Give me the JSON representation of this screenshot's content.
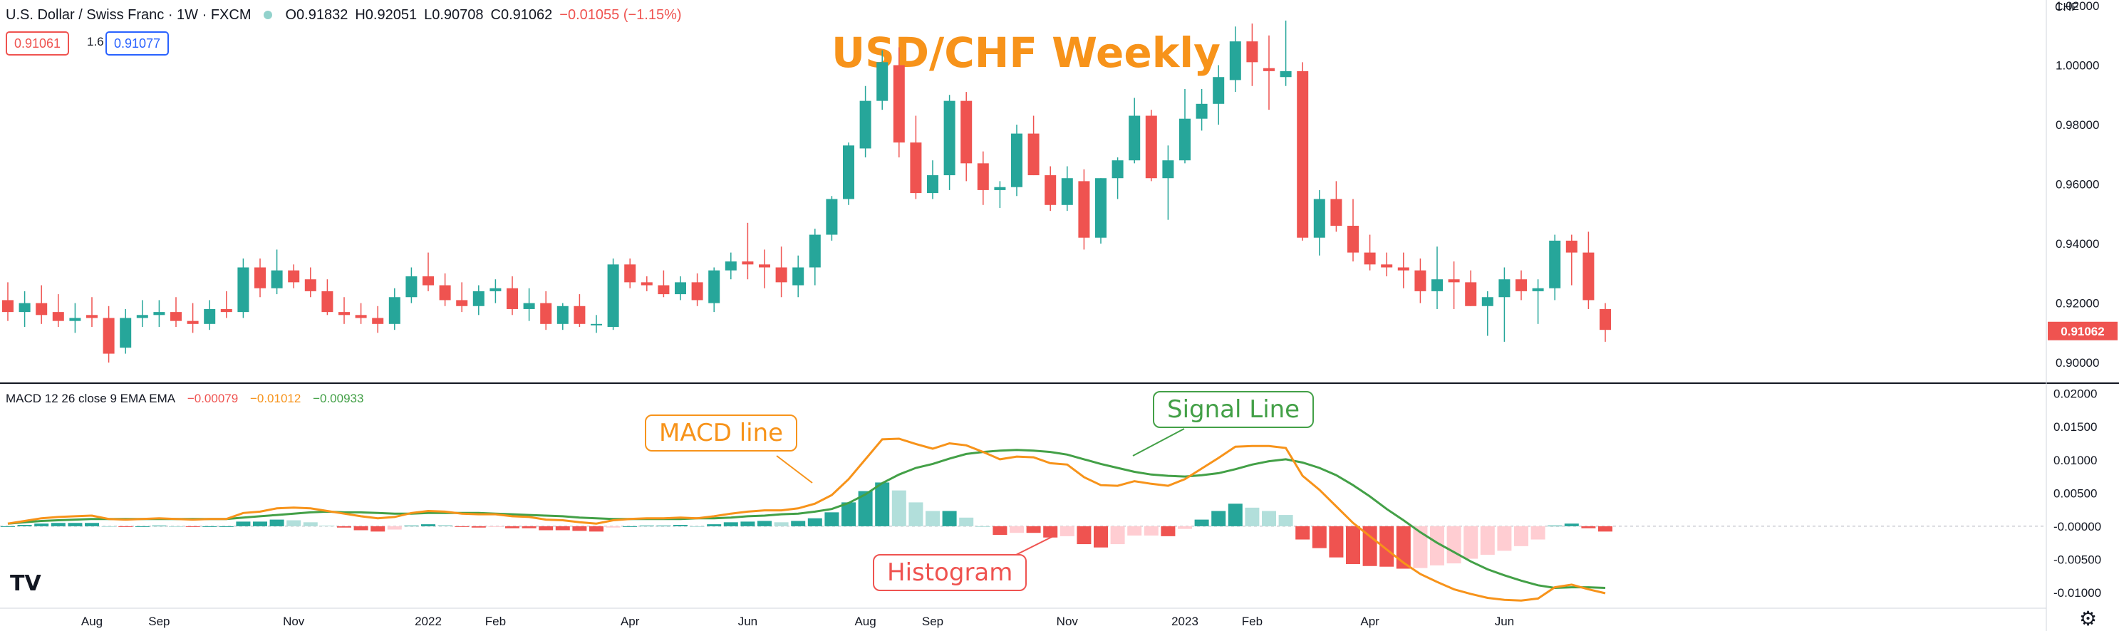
{
  "header": {
    "symbol": "U.S. Dollar / Swiss Franc · 1W · FXCM",
    "open": "O0.91832",
    "high": "H0.92051",
    "low": "L0.90708",
    "close": "C0.91062",
    "change": "−0.01055 (−1.15%)",
    "bid": "0.91061",
    "spread": "1.6",
    "ask": "0.91077",
    "currency": "CHF"
  },
  "chart_title": "USD/CHF Weekly",
  "macd_header": {
    "name": "MACD 12 26 close 9 EMA EMA",
    "hist_value": "−0.00079",
    "macd_value": "−0.01012",
    "signal_value": "−0.00933"
  },
  "callouts": {
    "macd_line": "MACD line",
    "signal_line": "Signal Line",
    "histogram": "Histogram"
  },
  "last_price_label": "0.91062",
  "colors": {
    "up": "#26a69a",
    "down": "#ef5350",
    "title": "#f7931a",
    "macd": "#f7931a",
    "signal": "#43a047"
  },
  "chart_data": [
    {
      "type": "candlestick",
      "title": "USD/CHF Weekly",
      "ylim": [
        0.895,
        1.02
      ],
      "y_ticks": [
        "0.90000",
        "0.92000",
        "0.94000",
        "0.96000",
        "0.98000",
        "1.00000",
        "1.02000"
      ],
      "x_tick_labels": [
        {
          "label": "Aug",
          "week": 5
        },
        {
          "label": "Sep",
          "week": 9
        },
        {
          "label": "Nov",
          "week": 17
        },
        {
          "label": "2022",
          "week": 25
        },
        {
          "label": "Feb",
          "week": 29
        },
        {
          "label": "Apr",
          "week": 37
        },
        {
          "label": "Jun",
          "week": 44
        },
        {
          "label": "Aug",
          "week": 51
        },
        {
          "label": "Sep",
          "week": 55
        },
        {
          "label": "Nov",
          "week": 63
        },
        {
          "label": "2023",
          "week": 70
        },
        {
          "label": "Feb",
          "week": 74
        },
        {
          "label": "Apr",
          "week": 81
        },
        {
          "label": "Jun",
          "week": 89
        }
      ],
      "ohlc": [
        [
          0.921,
          0.927,
          0.914,
          0.917
        ],
        [
          0.917,
          0.924,
          0.912,
          0.92
        ],
        [
          0.92,
          0.926,
          0.913,
          0.916
        ],
        [
          0.917,
          0.923,
          0.912,
          0.914
        ],
        [
          0.914,
          0.92,
          0.91,
          0.915
        ],
        [
          0.916,
          0.922,
          0.912,
          0.915
        ],
        [
          0.915,
          0.919,
          0.9,
          0.903
        ],
        [
          0.905,
          0.918,
          0.903,
          0.915
        ],
        [
          0.915,
          0.921,
          0.912,
          0.916
        ],
        [
          0.916,
          0.921,
          0.912,
          0.917
        ],
        [
          0.917,
          0.922,
          0.912,
          0.914
        ],
        [
          0.914,
          0.92,
          0.91,
          0.913
        ],
        [
          0.913,
          0.921,
          0.911,
          0.918
        ],
        [
          0.918,
          0.924,
          0.915,
          0.917
        ],
        [
          0.917,
          0.935,
          0.915,
          0.932
        ],
        [
          0.932,
          0.935,
          0.922,
          0.925
        ],
        [
          0.925,
          0.938,
          0.923,
          0.931
        ],
        [
          0.931,
          0.933,
          0.925,
          0.927
        ],
        [
          0.928,
          0.932,
          0.922,
          0.924
        ],
        [
          0.924,
          0.928,
          0.916,
          0.917
        ],
        [
          0.917,
          0.922,
          0.913,
          0.916
        ],
        [
          0.916,
          0.92,
          0.913,
          0.915
        ],
        [
          0.915,
          0.919,
          0.91,
          0.913
        ],
        [
          0.913,
          0.925,
          0.911,
          0.922
        ],
        [
          0.922,
          0.932,
          0.92,
          0.929
        ],
        [
          0.929,
          0.937,
          0.924,
          0.926
        ],
        [
          0.926,
          0.93,
          0.919,
          0.921
        ],
        [
          0.921,
          0.927,
          0.917,
          0.919
        ],
        [
          0.919,
          0.926,
          0.916,
          0.924
        ],
        [
          0.924,
          0.928,
          0.92,
          0.925
        ],
        [
          0.925,
          0.929,
          0.916,
          0.918
        ],
        [
          0.918,
          0.925,
          0.914,
          0.92
        ],
        [
          0.92,
          0.924,
          0.911,
          0.913
        ],
        [
          0.913,
          0.92,
          0.911,
          0.919
        ],
        [
          0.919,
          0.923,
          0.912,
          0.913
        ],
        [
          0.913,
          0.916,
          0.91,
          0.913
        ],
        [
          0.912,
          0.935,
          0.911,
          0.933
        ],
        [
          0.933,
          0.935,
          0.925,
          0.927
        ],
        [
          0.927,
          0.929,
          0.924,
          0.926
        ],
        [
          0.926,
          0.931,
          0.922,
          0.923
        ],
        [
          0.923,
          0.929,
          0.921,
          0.927
        ],
        [
          0.927,
          0.93,
          0.919,
          0.921
        ],
        [
          0.92,
          0.932,
          0.917,
          0.931
        ],
        [
          0.931,
          0.937,
          0.928,
          0.934
        ],
        [
          0.934,
          0.947,
          0.928,
          0.933
        ],
        [
          0.933,
          0.938,
          0.925,
          0.932
        ],
        [
          0.932,
          0.939,
          0.922,
          0.927
        ],
        [
          0.926,
          0.936,
          0.922,
          0.932
        ],
        [
          0.932,
          0.945,
          0.926,
          0.943
        ],
        [
          0.943,
          0.956,
          0.941,
          0.955
        ],
        [
          0.955,
          0.974,
          0.953,
          0.973
        ],
        [
          0.972,
          0.993,
          0.969,
          0.988
        ],
        [
          0.988,
          1.005,
          0.985,
          1.001
        ],
        [
          1.0,
          1.006,
          0.969,
          0.974
        ],
        [
          0.974,
          0.983,
          0.955,
          0.957
        ],
        [
          0.957,
          0.968,
          0.955,
          0.963
        ],
        [
          0.963,
          0.99,
          0.958,
          0.988
        ],
        [
          0.988,
          0.991,
          0.961,
          0.967
        ],
        [
          0.967,
          0.971,
          0.953,
          0.958
        ],
        [
          0.958,
          0.961,
          0.952,
          0.959
        ],
        [
          0.959,
          0.98,
          0.956,
          0.977
        ],
        [
          0.977,
          0.983,
          0.963,
          0.963
        ],
        [
          0.963,
          0.966,
          0.951,
          0.953
        ],
        [
          0.953,
          0.966,
          0.951,
          0.962
        ],
        [
          0.961,
          0.965,
          0.938,
          0.942
        ],
        [
          0.942,
          0.962,
          0.94,
          0.962
        ],
        [
          0.962,
          0.969,
          0.955,
          0.968
        ],
        [
          0.968,
          0.989,
          0.967,
          0.983
        ],
        [
          0.983,
          0.985,
          0.961,
          0.962
        ],
        [
          0.962,
          0.973,
          0.948,
          0.968
        ],
        [
          0.968,
          0.992,
          0.967,
          0.982
        ],
        [
          0.982,
          0.992,
          0.978,
          0.987
        ],
        [
          0.987,
          1.0,
          0.98,
          0.996
        ],
        [
          0.995,
          1.013,
          0.991,
          1.008
        ],
        [
          1.008,
          1.014,
          0.993,
          1.001
        ],
        [
          0.999,
          1.01,
          0.985,
          0.998
        ],
        [
          0.996,
          1.015,
          0.993,
          0.998
        ],
        [
          0.998,
          1.001,
          0.941,
          0.942
        ],
        [
          0.942,
          0.958,
          0.936,
          0.955
        ],
        [
          0.955,
          0.961,
          0.944,
          0.946
        ],
        [
          0.946,
          0.955,
          0.934,
          0.937
        ],
        [
          0.937,
          0.943,
          0.931,
          0.933
        ],
        [
          0.933,
          0.937,
          0.929,
          0.932
        ],
        [
          0.932,
          0.937,
          0.925,
          0.931
        ],
        [
          0.931,
          0.935,
          0.92,
          0.924
        ],
        [
          0.924,
          0.939,
          0.918,
          0.928
        ],
        [
          0.928,
          0.934,
          0.918,
          0.927
        ],
        [
          0.927,
          0.931,
          0.919,
          0.919
        ],
        [
          0.919,
          0.924,
          0.909,
          0.922
        ],
        [
          0.922,
          0.932,
          0.907,
          0.928
        ],
        [
          0.928,
          0.931,
          0.921,
          0.924
        ],
        [
          0.924,
          0.928,
          0.913,
          0.925
        ],
        [
          0.925,
          0.943,
          0.921,
          0.941
        ],
        [
          0.941,
          0.943,
          0.926,
          0.937
        ],
        [
          0.937,
          0.944,
          0.918,
          0.921
        ],
        [
          0.918,
          0.92,
          0.907,
          0.911
        ]
      ],
      "last_price": 0.91062
    },
    {
      "type": "macd",
      "title": "MACD 12 26 close 9 EMA EMA",
      "ylim": [
        -0.0115,
        0.0205
      ],
      "y_ticks": [
        "0.02000",
        "0.01500",
        "0.01000",
        "0.00500",
        "-0.00000",
        "-0.00500",
        "-0.01000"
      ],
      "series": [
        {
          "name": "MACD line",
          "color": "#f7931a"
        },
        {
          "name": "Signal Line",
          "color": "#43a047"
        },
        {
          "name": "Histogram",
          "color": "#ef5350"
        }
      ],
      "macd": [
        0.0004,
        0.0008,
        0.0012,
        0.0014,
        0.0015,
        0.0016,
        0.0011,
        0.001,
        0.0011,
        0.0012,
        0.0011,
        0.001,
        0.0011,
        0.0011,
        0.002,
        0.0022,
        0.0027,
        0.0028,
        0.0027,
        0.0023,
        0.0019,
        0.0015,
        0.0012,
        0.0014,
        0.002,
        0.0023,
        0.0022,
        0.0019,
        0.0018,
        0.0018,
        0.0015,
        0.0014,
        0.001,
        0.0009,
        0.0006,
        0.0004,
        0.0009,
        0.0011,
        0.0012,
        0.0012,
        0.0013,
        0.0012,
        0.0015,
        0.0019,
        0.0022,
        0.0024,
        0.0024,
        0.0027,
        0.0034,
        0.0047,
        0.0071,
        0.0101,
        0.0131,
        0.0132,
        0.0124,
        0.0117,
        0.0125,
        0.0122,
        0.0112,
        0.0101,
        0.0105,
        0.0104,
        0.0095,
        0.0093,
        0.0074,
        0.0062,
        0.0061,
        0.0068,
        0.0064,
        0.0061,
        0.0071,
        0.0087,
        0.0103,
        0.012,
        0.0121,
        0.0121,
        0.0118,
        0.0076,
        0.0055,
        0.003,
        0.0005,
        -0.0015,
        -0.0035,
        -0.0055,
        -0.0072,
        -0.0084,
        -0.0095,
        -0.0102,
        -0.0108,
        -0.0111,
        -0.0112,
        -0.0109,
        -0.0092,
        -0.0088,
        -0.0095,
        -0.0101
      ],
      "signal": [
        0.0004,
        0.0006,
        0.0008,
        0.0009,
        0.001,
        0.0011,
        0.0011,
        0.0011,
        0.0011,
        0.0011,
        0.0011,
        0.0011,
        0.0011,
        0.0011,
        0.0013,
        0.0015,
        0.0017,
        0.0019,
        0.0021,
        0.0022,
        0.0021,
        0.0021,
        0.002,
        0.0019,
        0.0019,
        0.002,
        0.002,
        0.002,
        0.002,
        0.0019,
        0.0018,
        0.0017,
        0.0016,
        0.0015,
        0.0013,
        0.0012,
        0.0011,
        0.0011,
        0.0011,
        0.0011,
        0.0011,
        0.0012,
        0.0012,
        0.0013,
        0.0015,
        0.0016,
        0.0018,
        0.0019,
        0.0022,
        0.0026,
        0.0035,
        0.0048,
        0.0065,
        0.0078,
        0.0088,
        0.0094,
        0.0102,
        0.0109,
        0.0112,
        0.0114,
        0.0115,
        0.0114,
        0.0112,
        0.0108,
        0.0101,
        0.0094,
        0.0088,
        0.0082,
        0.0078,
        0.0076,
        0.0075,
        0.0077,
        0.008,
        0.0086,
        0.0093,
        0.0098,
        0.0101,
        0.0096,
        0.0088,
        0.0077,
        0.0062,
        0.0045,
        0.0026,
        0.0009,
        -0.0009,
        -0.0025,
        -0.0039,
        -0.0053,
        -0.0065,
        -0.0074,
        -0.0082,
        -0.0089,
        -0.0093,
        -0.0092,
        -0.0092,
        -0.0093
      ]
    }
  ]
}
